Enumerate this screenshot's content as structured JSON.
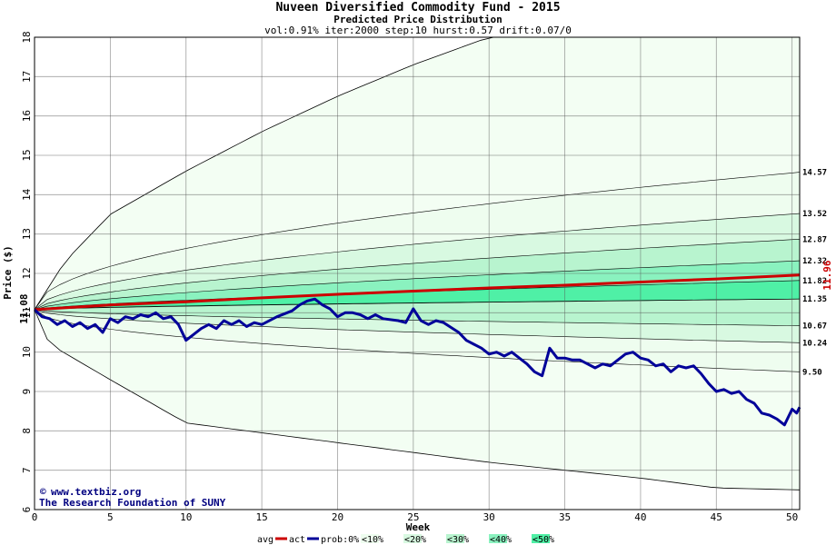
{
  "chart_data": {
    "type": "line",
    "title": "Nuveen Diversified Commodity Fund - 2015",
    "subtitle": "Predicted Price Distribution",
    "params": "vol:0.91% iter:2000 step:10 hurst:0.57 drift:0.07/0",
    "xlabel": "Week",
    "ylabel": "Price ($)",
    "xlim": [
      0,
      50.5
    ],
    "ylim": [
      6,
      18
    ],
    "xticks": [
      "0",
      "5",
      "10",
      "15",
      "20",
      "25",
      "30",
      "35",
      "40",
      "45",
      "50"
    ],
    "yticks": [
      "6",
      "7",
      "8",
      "9",
      "10",
      "11",
      "12",
      "13",
      "14",
      "15",
      "16",
      "17",
      "18"
    ],
    "grid": true,
    "start_price": "11.08",
    "avg_end_label": "11.96",
    "right_labels": [
      "14.57",
      "13.52",
      "12.87",
      "12.32",
      "11.82",
      "11.35",
      "10.67",
      "10.24",
      "9.50"
    ],
    "bands": [
      {
        "name": "<10%",
        "color": "#eefdef",
        "upper_end": 14.57,
        "lower_end": 9.5
      },
      {
        "name": "<20%",
        "color": "#d8f9e1",
        "upper_end": 13.52,
        "lower_end": 10.24
      },
      {
        "name": "<30%",
        "color": "#b8f4cf",
        "upper_end": 12.87,
        "lower_end": 10.67
      },
      {
        "name": "<40%",
        "color": "#8af2bf",
        "upper_end": 12.32,
        "lower_end": 11.35
      },
      {
        "name": "<50%",
        "color": "#4ff0a6",
        "upper_end": 11.82,
        "lower_end": 11.35
      }
    ],
    "envelope": {
      "upper": [
        [
          0,
          11.08
        ],
        [
          2,
          12.3
        ],
        [
          5,
          13.5
        ],
        [
          10,
          14.6
        ],
        [
          15,
          15.6
        ],
        [
          20,
          16.5
        ],
        [
          25,
          17.3
        ],
        [
          30,
          18.0
        ],
        [
          50.5,
          18.0
        ]
      ],
      "lower": [
        [
          0,
          11.08
        ],
        [
          0.5,
          10.6
        ],
        [
          1,
          10.2
        ],
        [
          5,
          9.3
        ],
        [
          10,
          8.2
        ],
        [
          15,
          7.95
        ],
        [
          20,
          7.7
        ],
        [
          25,
          7.45
        ],
        [
          30,
          7.2
        ],
        [
          35,
          7.0
        ],
        [
          40,
          6.8
        ],
        [
          45,
          6.55
        ],
        [
          50.5,
          6.5
        ]
      ]
    },
    "series": [
      {
        "name": "avg",
        "color": "#cc0000",
        "points": [
          [
            0,
            11.08
          ],
          [
            5,
            11.2
          ],
          [
            10,
            11.28
          ],
          [
            15,
            11.38
          ],
          [
            20,
            11.47
          ],
          [
            25,
            11.55
          ],
          [
            30,
            11.63
          ],
          [
            35,
            11.7
          ],
          [
            40,
            11.78
          ],
          [
            45,
            11.86
          ],
          [
            50.5,
            11.96
          ]
        ]
      },
      {
        "name": "act",
        "color": "#000099",
        "points": [
          [
            0,
            11.08
          ],
          [
            0.5,
            10.9
          ],
          [
            1,
            10.85
          ],
          [
            1.5,
            10.7
          ],
          [
            2,
            10.8
          ],
          [
            2.5,
            10.65
          ],
          [
            3,
            10.75
          ],
          [
            3.5,
            10.6
          ],
          [
            4,
            10.7
          ],
          [
            4.5,
            10.5
          ],
          [
            5,
            10.85
          ],
          [
            5.5,
            10.75
          ],
          [
            6,
            10.9
          ],
          [
            6.5,
            10.85
          ],
          [
            7,
            10.95
          ],
          [
            7.5,
            10.9
          ],
          [
            8,
            11.0
          ],
          [
            8.5,
            10.85
          ],
          [
            9,
            10.9
          ],
          [
            9.5,
            10.7
          ],
          [
            10,
            10.3
          ],
          [
            10.5,
            10.45
          ],
          [
            11,
            10.6
          ],
          [
            11.5,
            10.7
          ],
          [
            12,
            10.6
          ],
          [
            12.5,
            10.8
          ],
          [
            13,
            10.7
          ],
          [
            13.5,
            10.8
          ],
          [
            14,
            10.65
          ],
          [
            14.5,
            10.75
          ],
          [
            15,
            10.7
          ],
          [
            16,
            10.9
          ],
          [
            17,
            11.05
          ],
          [
            17.5,
            11.2
          ],
          [
            18,
            11.3
          ],
          [
            18.5,
            11.35
          ],
          [
            19,
            11.2
          ],
          [
            19.5,
            11.1
          ],
          [
            20,
            10.9
          ],
          [
            20.5,
            11.0
          ],
          [
            21,
            11.0
          ],
          [
            21.5,
            10.95
          ],
          [
            22,
            10.85
          ],
          [
            22.5,
            10.95
          ],
          [
            23,
            10.85
          ],
          [
            24,
            10.8
          ],
          [
            24.5,
            10.75
          ],
          [
            25,
            11.1
          ],
          [
            25.5,
            10.8
          ],
          [
            26,
            10.7
          ],
          [
            26.5,
            10.8
          ],
          [
            27,
            10.75
          ],
          [
            28,
            10.5
          ],
          [
            28.5,
            10.3
          ],
          [
            29,
            10.2
          ],
          [
            29.5,
            10.1
          ],
          [
            30,
            9.95
          ],
          [
            30.5,
            10.0
          ],
          [
            31,
            9.9
          ],
          [
            31.5,
            10.0
          ],
          [
            32,
            9.85
          ],
          [
            32.5,
            9.7
          ],
          [
            33,
            9.5
          ],
          [
            33.5,
            9.4
          ],
          [
            34,
            10.1
          ],
          [
            34.5,
            9.85
          ],
          [
            35,
            9.85
          ],
          [
            35.5,
            9.8
          ],
          [
            36,
            9.8
          ],
          [
            36.5,
            9.7
          ],
          [
            37,
            9.6
          ],
          [
            37.5,
            9.7
          ],
          [
            38,
            9.65
          ],
          [
            38.5,
            9.8
          ],
          [
            39,
            9.95
          ],
          [
            39.5,
            10.0
          ],
          [
            40,
            9.85
          ],
          [
            40.5,
            9.8
          ],
          [
            41,
            9.65
          ],
          [
            41.5,
            9.7
          ],
          [
            42,
            9.5
          ],
          [
            42.5,
            9.65
          ],
          [
            43,
            9.6
          ],
          [
            43.5,
            9.65
          ],
          [
            44,
            9.45
          ],
          [
            44.5,
            9.2
          ],
          [
            45,
            9.0
          ],
          [
            45.5,
            9.05
          ],
          [
            46,
            8.95
          ],
          [
            46.5,
            9.0
          ],
          [
            47,
            8.8
          ],
          [
            47.5,
            8.7
          ],
          [
            48,
            8.45
          ],
          [
            48.5,
            8.4
          ],
          [
            49,
            8.3
          ],
          [
            49.5,
            8.15
          ],
          [
            50,
            8.55
          ],
          [
            50.3,
            8.45
          ],
          [
            50.5,
            8.6
          ]
        ]
      }
    ],
    "legend": {
      "avg": "avg",
      "act": "act",
      "prob": "prob:0%",
      "bands": [
        "<10%",
        "<20%",
        "<30%",
        "<40%",
        "<50%"
      ]
    }
  },
  "credits": {
    "line1": "www.textbiz.org",
    "line2": "The Research Foundation of SUNY"
  }
}
